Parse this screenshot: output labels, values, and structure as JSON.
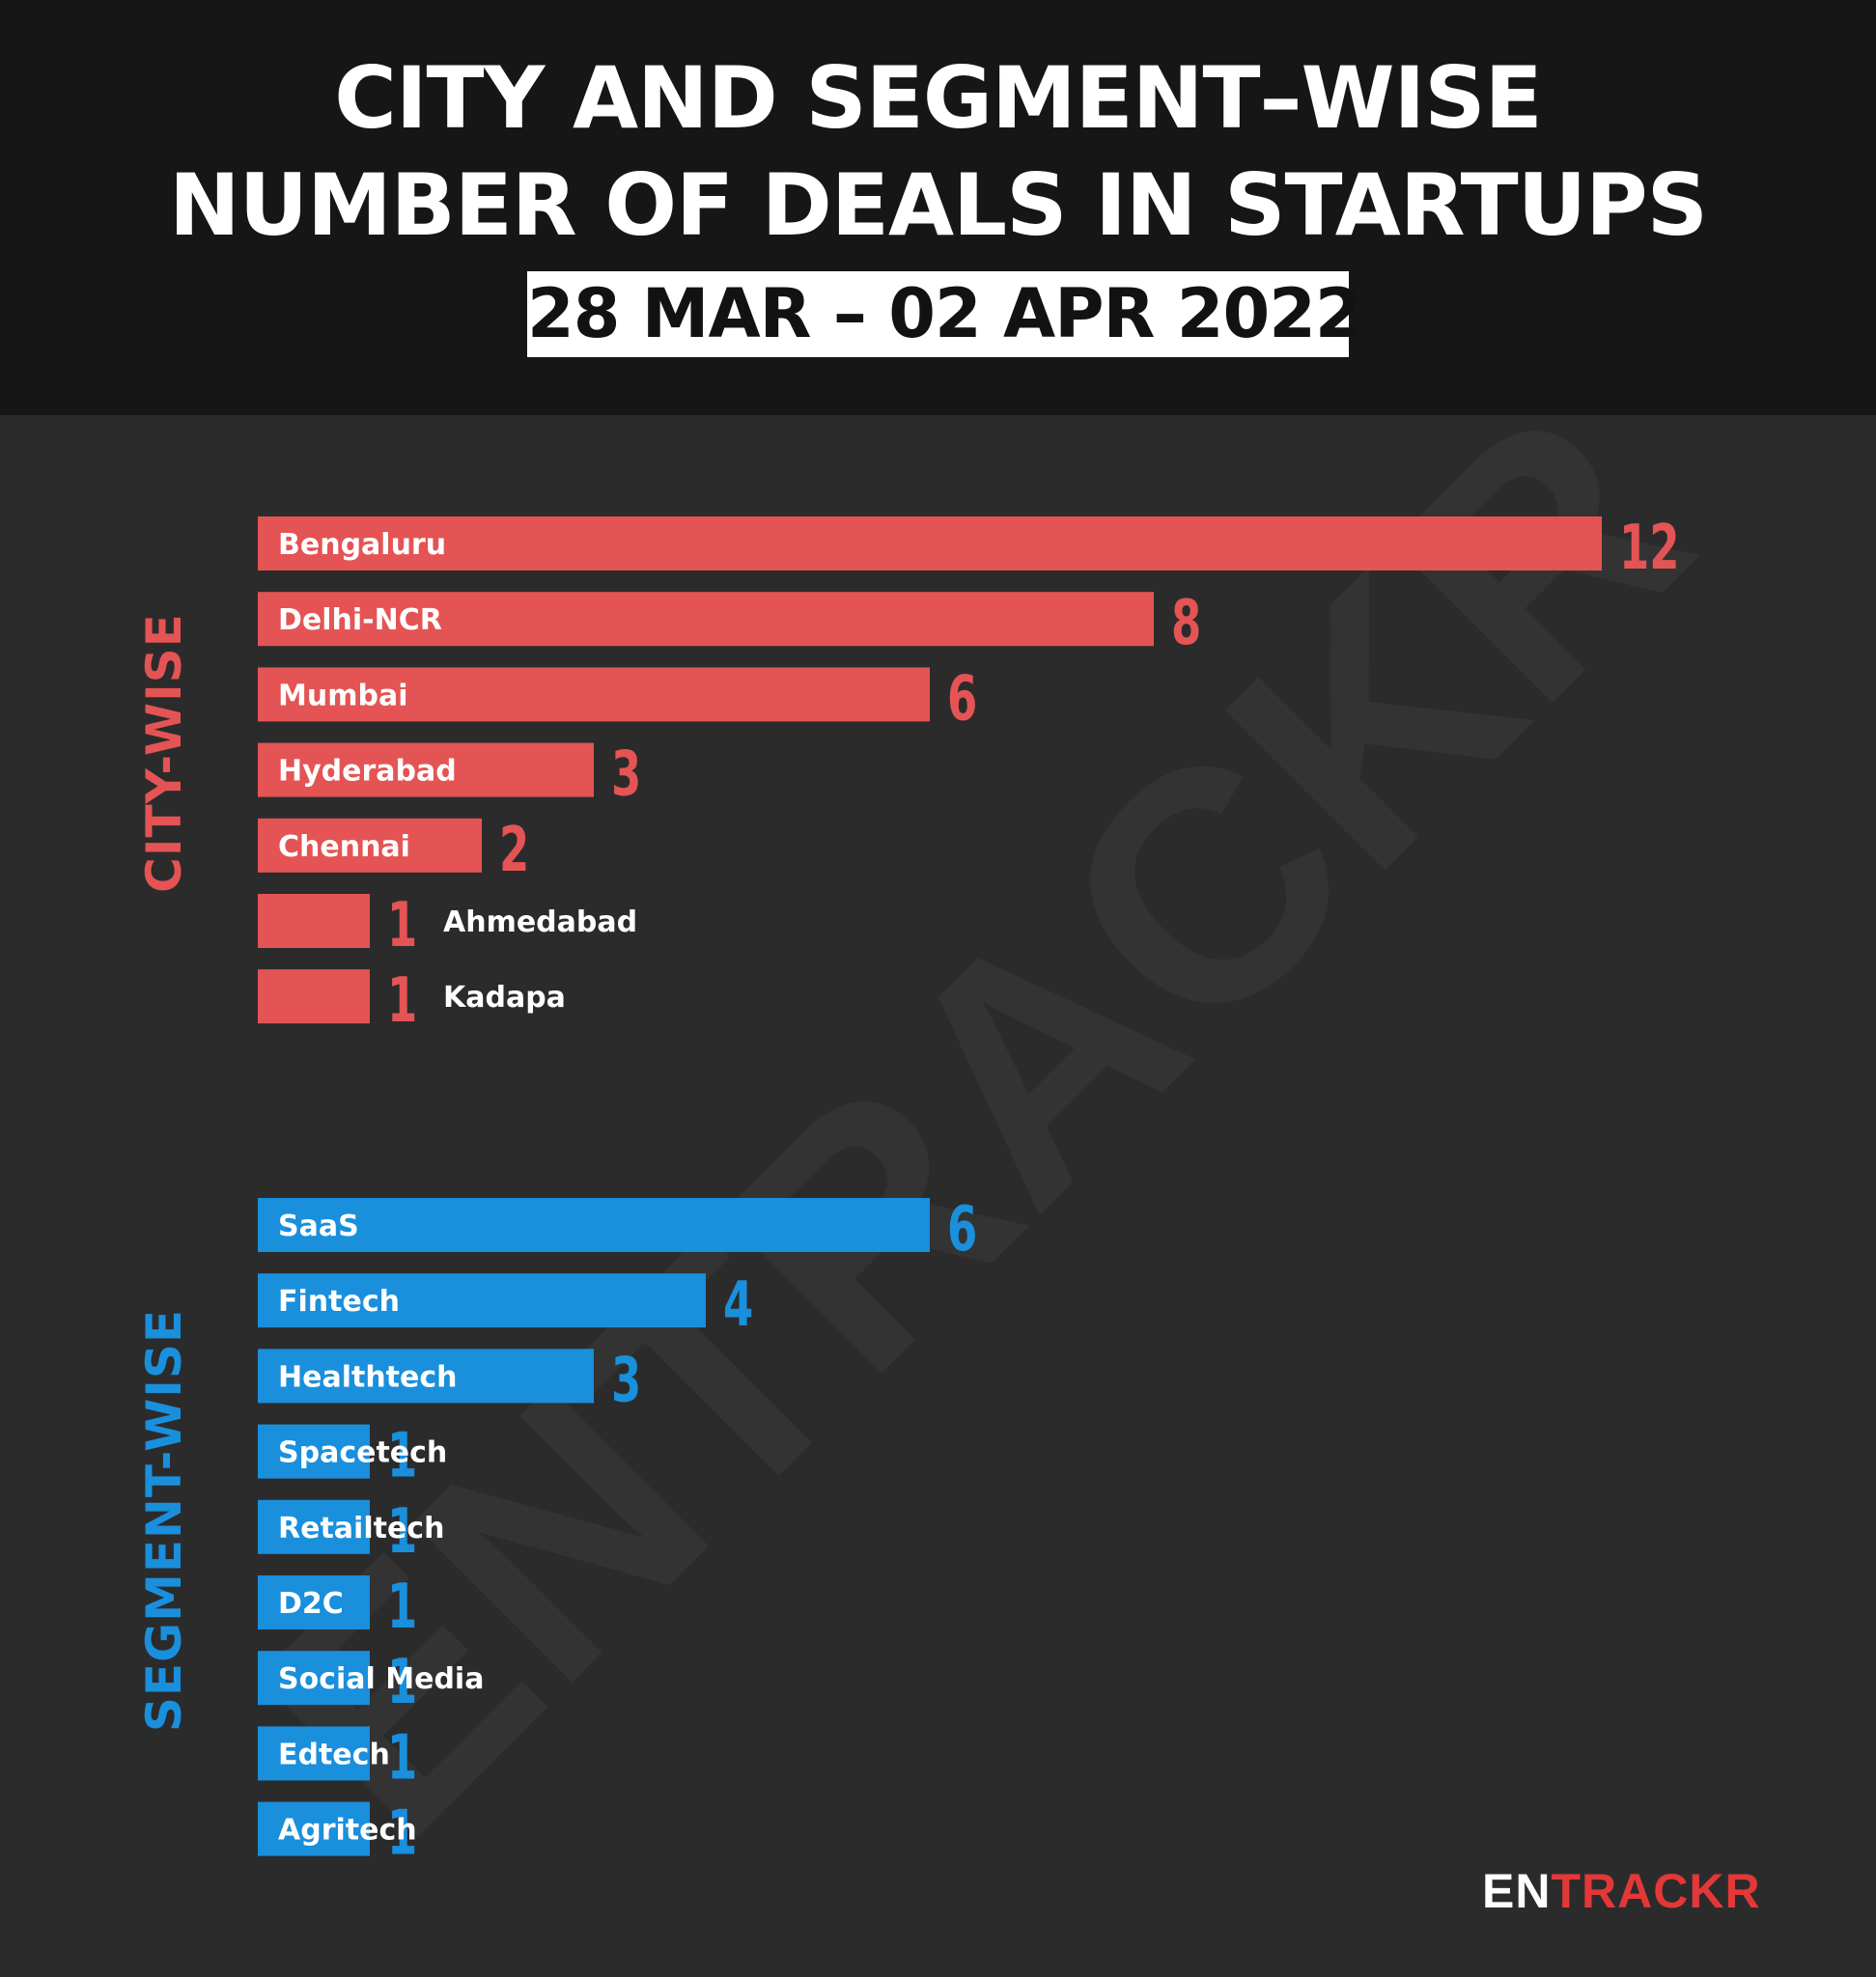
{
  "header": {
    "title_line1": "CITY AND SEGMENT–WISE",
    "title_line2": "NUMBER OF DEALS IN STARTUPS",
    "date_range": "28 MAR – 02 APR 2022"
  },
  "watermark": "ENTRACKR",
  "brand": {
    "part1": "EN",
    "part2": "TRACKR"
  },
  "colors": {
    "city": "#e45454",
    "segment": "#1a8fdc",
    "background": "#2b2b2c",
    "header": "#161616"
  },
  "chart_data": [
    {
      "type": "bar",
      "orientation": "horizontal",
      "section_label": "CITY-WISE",
      "categories": [
        "Bengaluru",
        "Delhi-NCR",
        "Mumbai",
        "Hyderabad",
        "Chennai",
        "Ahmedabad",
        "Kadapa"
      ],
      "values": [
        12,
        8,
        6,
        3,
        2,
        1,
        1
      ],
      "color": "#e45454"
    },
    {
      "type": "bar",
      "orientation": "horizontal",
      "section_label": "SEGMENT-WISE",
      "categories": [
        "SaaS",
        "Fintech",
        "Healthtech",
        "Spacetech",
        "Retailtech",
        "D2C",
        "Social Media",
        "Edtech",
        "Agritech"
      ],
      "values": [
        6,
        4,
        3,
        1,
        1,
        1,
        1,
        1,
        1
      ],
      "color": "#1a8fdc"
    }
  ]
}
